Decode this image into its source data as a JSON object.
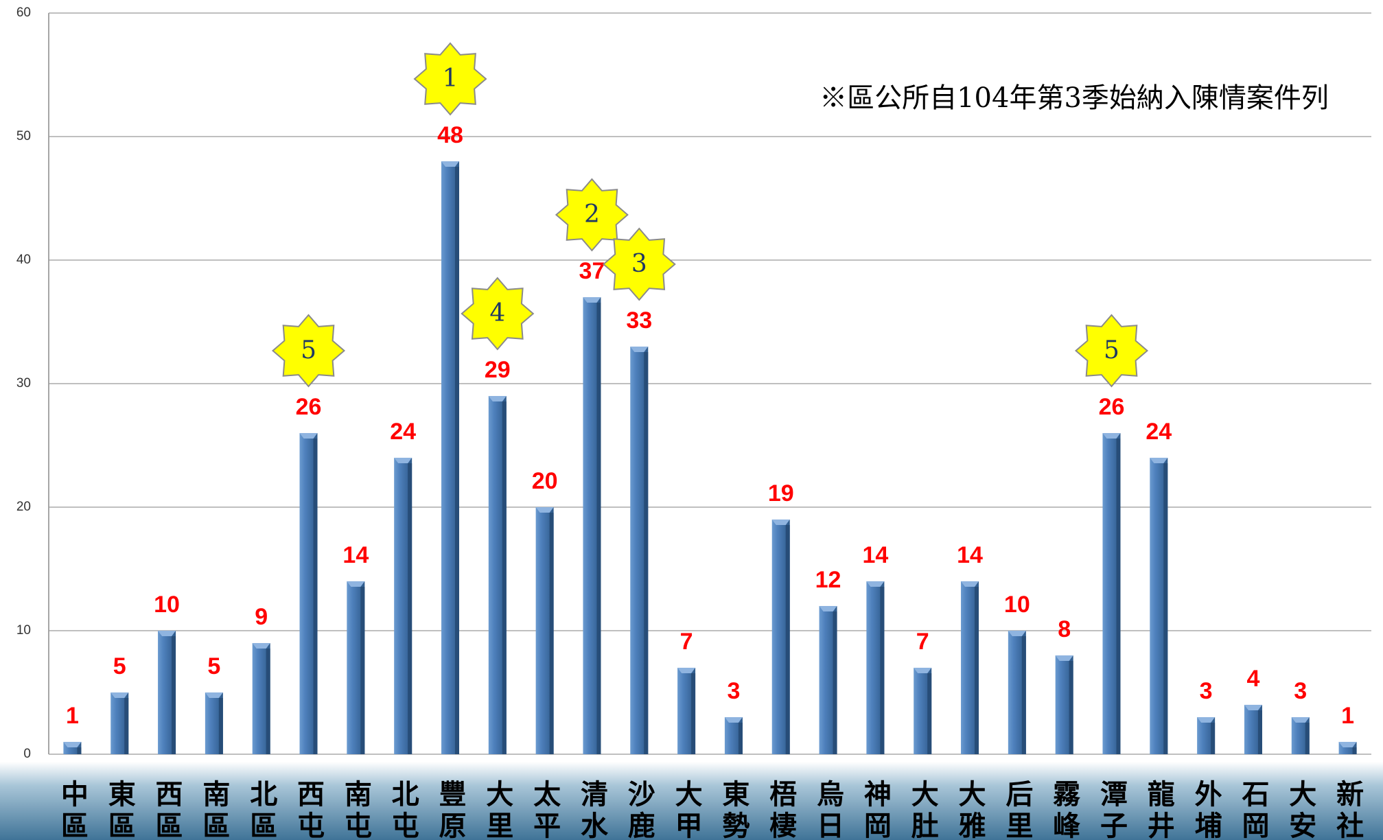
{
  "chart_data": {
    "type": "bar",
    "categories": [
      "中區",
      "東區",
      "西區",
      "南區",
      "北區",
      "西屯",
      "南屯",
      "北屯",
      "豐原",
      "大里",
      "太平",
      "清水",
      "沙鹿",
      "大甲",
      "東勢",
      "梧棲",
      "烏日",
      "神岡",
      "大肚",
      "大雅",
      "后里",
      "霧峰",
      "潭子",
      "龍井",
      "外埔",
      "石岡",
      "大安",
      "新社"
    ],
    "values": [
      1,
      5,
      10,
      5,
      9,
      26,
      14,
      24,
      48,
      29,
      20,
      37,
      33,
      7,
      3,
      19,
      12,
      14,
      7,
      14,
      10,
      8,
      26,
      24,
      3,
      4,
      3,
      1
    ],
    "color": "#4f81bd",
    "ylim": [
      0,
      60
    ],
    "yticks": [
      0,
      10,
      20,
      30,
      40,
      50,
      60
    ],
    "grid": true,
    "annotation": "※區公所自104年第3季始納入陳情案件列",
    "rank_badges": [
      {
        "category": "豐原",
        "label": "1"
      },
      {
        "category": "清水",
        "label": "2"
      },
      {
        "category": "沙鹿",
        "label": "3"
      },
      {
        "category": "大里",
        "label": "4"
      },
      {
        "category": "西屯",
        "label": "5"
      },
      {
        "category": "潭子",
        "label": "5"
      }
    ]
  }
}
